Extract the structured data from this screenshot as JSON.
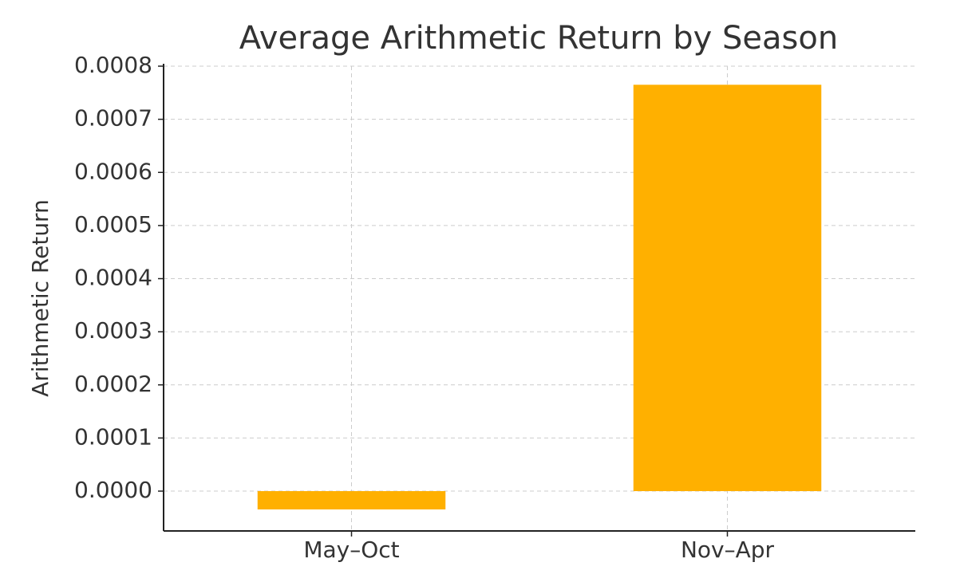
{
  "chart_data": {
    "type": "bar",
    "title": "Average Arithmetic Return by Season",
    "y_label": "Arithmetic Return",
    "categories": [
      "May–Oct",
      "Nov–Apr"
    ],
    "values": [
      -3.45e-05,
      0.000765
    ],
    "color": "#ffb000",
    "ylim": [
      -7.5e-05,
      0.0008
    ],
    "yticks": [
      {
        "value": 0,
        "label": "0.0000"
      },
      {
        "value": 0.0001,
        "label": "0.0001"
      },
      {
        "value": 0.0002,
        "label": "0.0002"
      },
      {
        "value": 0.0003,
        "label": "0.0003"
      },
      {
        "value": 0.0004,
        "label": "0.0004"
      },
      {
        "value": 0.0005,
        "label": "0.0005"
      },
      {
        "value": 0.0006,
        "label": "0.0006"
      },
      {
        "value": 0.0007,
        "label": "0.0007"
      },
      {
        "value": 0.0008,
        "label": "0.0008"
      }
    ],
    "grid": true
  }
}
